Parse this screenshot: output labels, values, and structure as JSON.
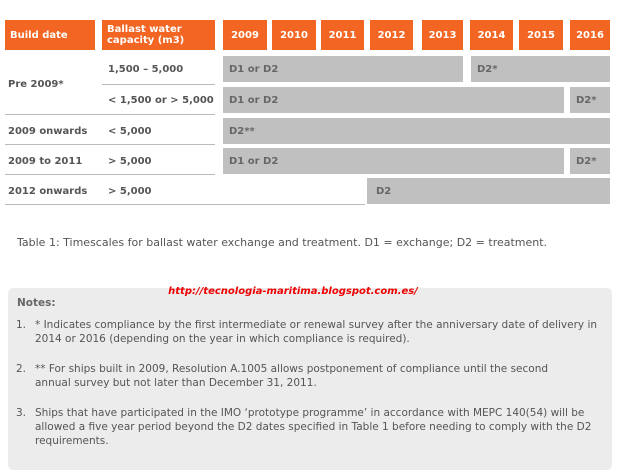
{
  "table": {
    "headers": {
      "build_date": "Build date",
      "capacity": "Ballast water capacity (m3)",
      "years": [
        "2009",
        "2010",
        "2011",
        "2012",
        "2013",
        "2014",
        "2015",
        "2016"
      ]
    },
    "rows": [
      {
        "build_date": "Pre 2009*",
        "capacity": "1,500 – 5,000",
        "bars": [
          "D1 or D2",
          "D2*"
        ]
      },
      {
        "build_date": "",
        "capacity": "< 1,500 or > 5,000",
        "bars": [
          "D1 or D2",
          "D2*"
        ]
      },
      {
        "build_date": "2009 onwards",
        "capacity": "< 5,000",
        "bars": [
          "D2**"
        ]
      },
      {
        "build_date": "2009 to 2011",
        "capacity": "> 5,000",
        "bars": [
          "D1 or D2",
          "D2*"
        ]
      },
      {
        "build_date": "2012 onwards",
        "capacity": "> 5,000",
        "bars": [
          "D2"
        ]
      }
    ],
    "colors": {
      "header": "#f26522",
      "bar": "#c0c0c0"
    }
  },
  "caption": "Table 1: Timescales for ballast water exchange and treatment. D1 = exchange; D2 = treatment.",
  "watermark_url": "http://tecnologia-maritima.blogspot.com.es/",
  "notes": {
    "title": "Notes:",
    "items": [
      {
        "num": "1.",
        "text": "* Indicates compliance by the first intermediate or renewal survey after the anniversary date of delivery in 2014 or 2016 (depending on the year in which compliance is required)."
      },
      {
        "num": "2.",
        "text": "** For ships built in 2009, Resolution A.1005 allows postponement of compliance until the second annual survey but not later than December 31, 2011."
      },
      {
        "num": "3.",
        "text": "Ships that have participated in the IMO ‘prototype programme’ in accordance with MEPC 140(54) will be allowed a five year period beyond the D2 dates specified in Table 1 before needing to comply with the D2 requirements."
      }
    ]
  }
}
